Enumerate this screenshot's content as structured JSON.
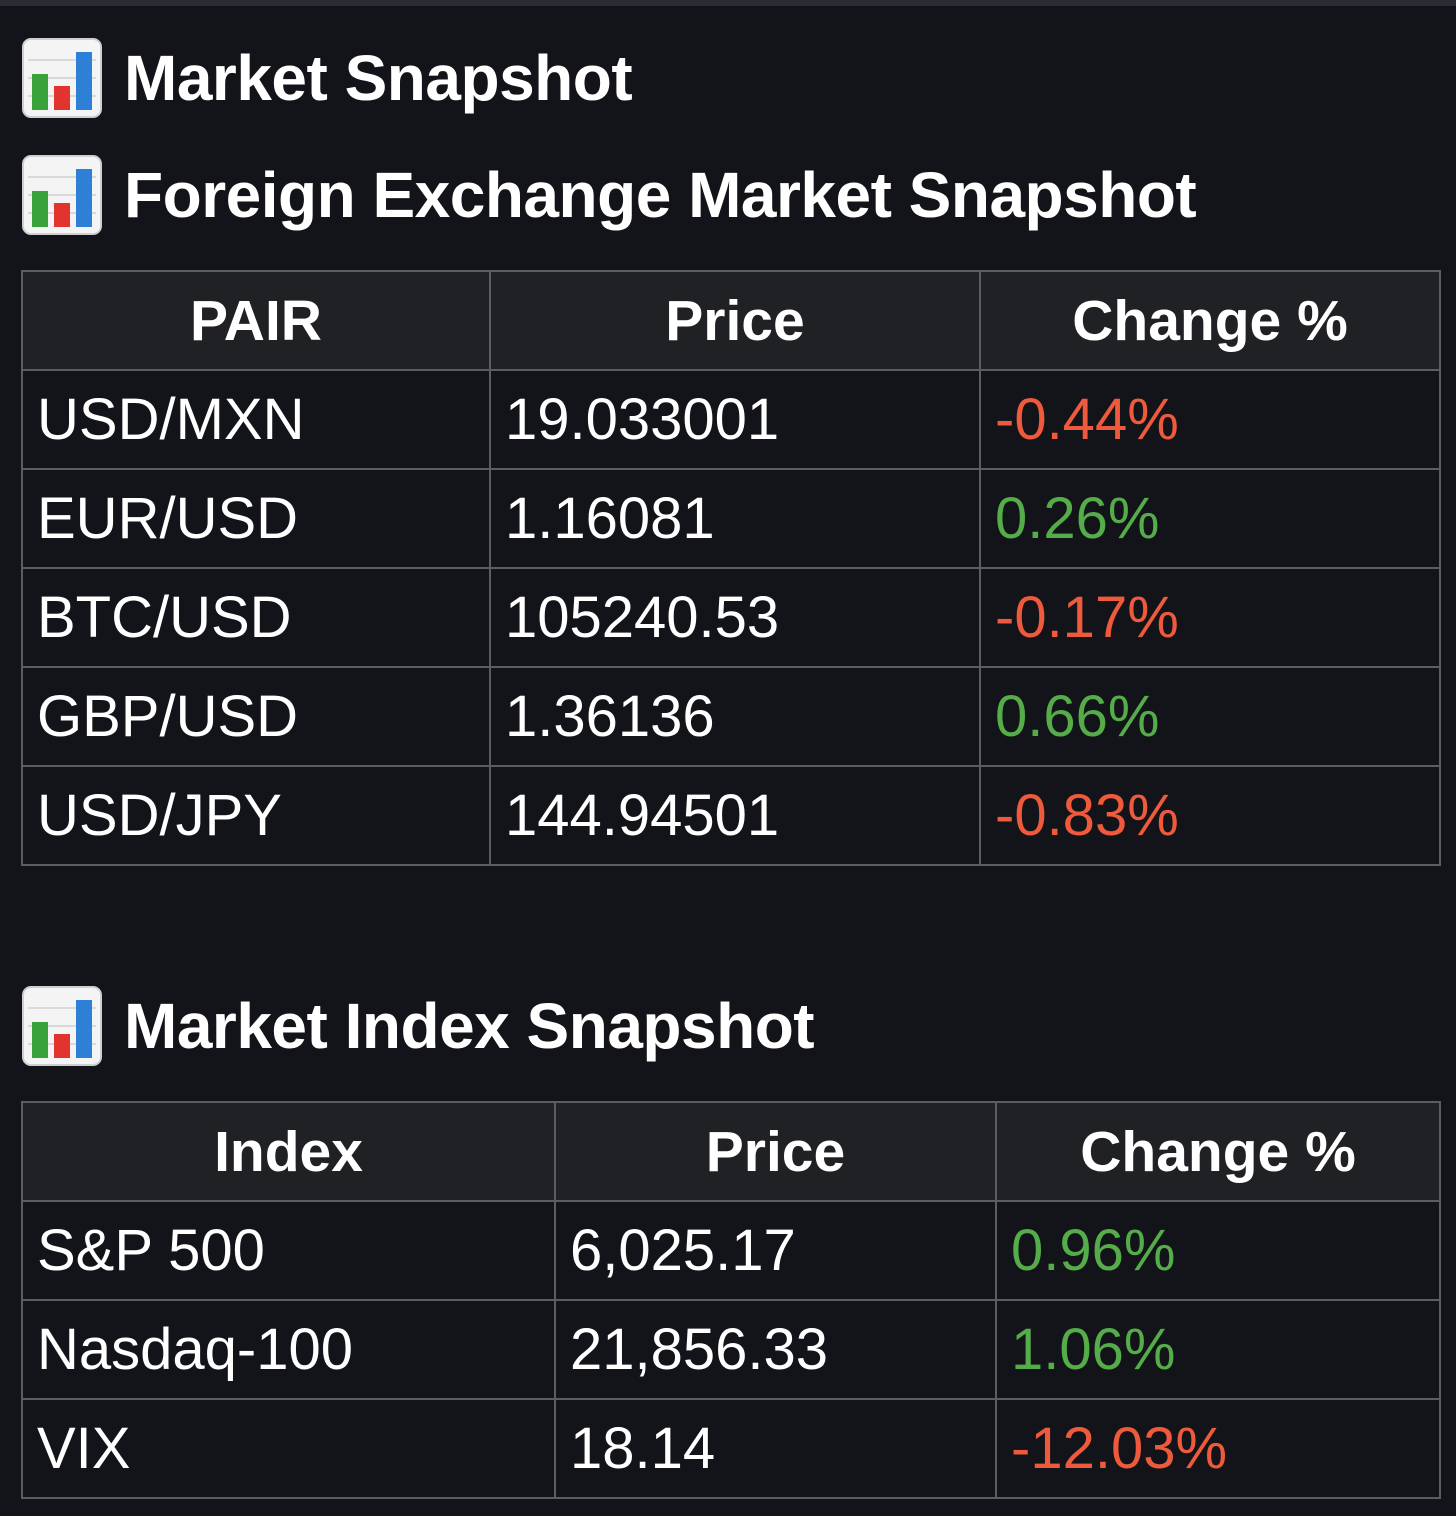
{
  "page_title": "Market Snapshot",
  "forex": {
    "title": "Foreign Exchange Market Snapshot",
    "headers": [
      "PAIR",
      "Price",
      "Change %"
    ],
    "rows": [
      {
        "name": "USD/MXN",
        "price": "19.033001",
        "change": "-0.44%",
        "direction": "down"
      },
      {
        "name": "EUR/USD",
        "price": "1.16081",
        "change": "0.26%",
        "direction": "up"
      },
      {
        "name": "BTC/USD",
        "price": "105240.53",
        "change": "-0.17%",
        "direction": "down"
      },
      {
        "name": "GBP/USD",
        "price": "1.36136",
        "change": "0.66%",
        "direction": "up"
      },
      {
        "name": "USD/JPY",
        "price": "144.94501",
        "change": "-0.83%",
        "direction": "down"
      }
    ]
  },
  "indices": {
    "title": "Market Index Snapshot",
    "headers": [
      "Index",
      "Price",
      "Change %"
    ],
    "rows": [
      {
        "name": "S&P 500",
        "price": "6,025.17",
        "change": "0.96%",
        "direction": "up"
      },
      {
        "name": "Nasdaq-100",
        "price": "21,856.33",
        "change": "1.06%",
        "direction": "up"
      },
      {
        "name": "VIX",
        "price": "18.14",
        "change": "-12.03%",
        "direction": "down"
      }
    ]
  },
  "icons": {
    "heading_icon": "bar-chart-icon"
  },
  "colors": {
    "background": "#131419",
    "header_bg": "#202125",
    "positive": "#55ad4a",
    "negative": "#ee5a3b",
    "border": "#5b5d63"
  }
}
